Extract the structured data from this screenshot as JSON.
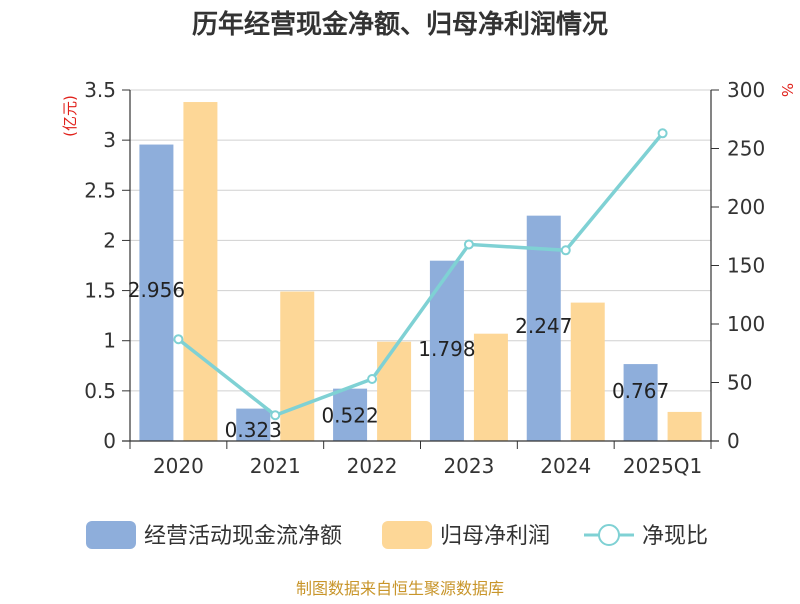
{
  "chart_data": {
    "type": "bar",
    "title": "历年经营现金净额、归母净利润情况",
    "categories": [
      "2020",
      "2021",
      "2022",
      "2023",
      "2024",
      "2025Q1"
    ],
    "y_left": {
      "unit": "(亿元)",
      "ylim": [
        0,
        3.5
      ],
      "ticks": [
        "0",
        "0.5",
        "1",
        "1.5",
        "2",
        "2.5",
        "3",
        "3.5"
      ]
    },
    "y_right": {
      "unit": "%",
      "ylim": [
        0,
        300
      ],
      "ticks": [
        "0",
        "50",
        "100",
        "150",
        "200",
        "250",
        "300"
      ]
    },
    "series": [
      {
        "name": "经营活动现金流净额",
        "kind": "bar",
        "axis": "left",
        "color": "#8eaedb",
        "values": [
          2.956,
          0.323,
          0.522,
          1.798,
          2.247,
          0.767
        ],
        "labels": [
          "2.956",
          "0.323",
          "0.522",
          "1.798",
          "2.247",
          "0.767"
        ]
      },
      {
        "name": "归母净利润",
        "kind": "bar",
        "axis": "left",
        "color": "#fdd797",
        "values": [
          3.38,
          1.49,
          0.99,
          1.07,
          1.38,
          0.29
        ]
      },
      {
        "name": "净现比",
        "kind": "line",
        "axis": "right",
        "color": "#7fd1d4",
        "values": [
          87,
          22,
          53,
          168,
          163,
          263
        ]
      }
    ],
    "grid": true,
    "legend_position": "bottom"
  },
  "source": "制图数据来自恒生聚源数据库"
}
